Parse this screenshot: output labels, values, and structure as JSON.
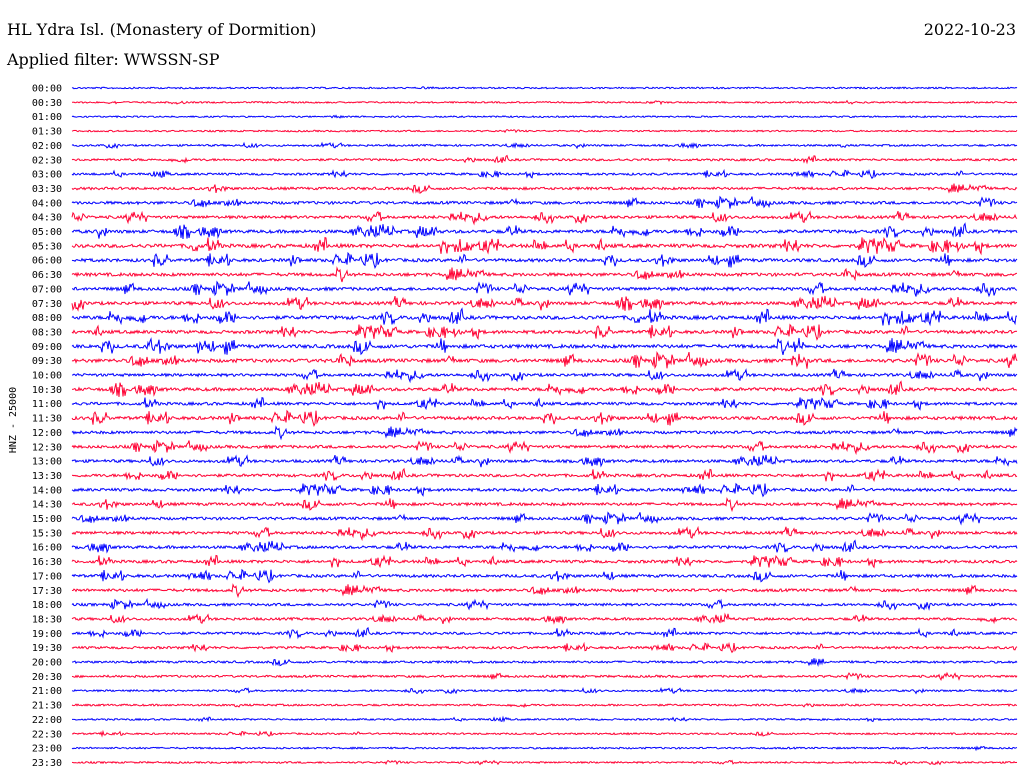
{
  "header": {
    "station": "HL Ydra Isl. (Monastery of Dormition)",
    "date": "2022-10-23",
    "filter": "Applied filter: WWSSN-SP"
  },
  "chart_data": {
    "type": "line",
    "title": "HL Ydra Isl. (Monastery of Dormition)",
    "ylabel": "HNZ - 25000",
    "row_labels": [
      "00:00",
      "00:30",
      "01:00",
      "01:30",
      "02:00",
      "02:30",
      "03:00",
      "03:30",
      "04:00",
      "04:30",
      "05:00",
      "05:30",
      "06:00",
      "06:30",
      "07:00",
      "07:30",
      "08:00",
      "08:30",
      "09:00",
      "09:30",
      "10:00",
      "10:30",
      "11:00",
      "11:30",
      "12:00",
      "12:30",
      "13:00",
      "13:30",
      "14:00",
      "14:30",
      "15:00",
      "15:30",
      "16:00",
      "16:30",
      "17:00",
      "17:30",
      "18:00",
      "18:30",
      "19:00",
      "19:30",
      "20:00",
      "20:30",
      "21:00",
      "21:30",
      "22:00",
      "22:30",
      "23:00",
      "23:30"
    ],
    "row_colors": [
      "#0000ff",
      "#ff0033"
    ],
    "row_activity": [
      0.1,
      0.1,
      0.1,
      0.1,
      0.2,
      0.3,
      0.3,
      0.4,
      0.5,
      0.5,
      0.6,
      0.7,
      0.6,
      0.6,
      0.6,
      0.6,
      0.7,
      0.6,
      0.7,
      0.7,
      0.5,
      0.6,
      0.5,
      0.6,
      0.5,
      0.5,
      0.5,
      0.5,
      0.5,
      0.5,
      0.5,
      0.5,
      0.5,
      0.5,
      0.5,
      0.5,
      0.4,
      0.4,
      0.4,
      0.35,
      0.3,
      0.3,
      0.2,
      0.2,
      0.15,
      0.15,
      0.15,
      0.15
    ],
    "grid": false
  }
}
